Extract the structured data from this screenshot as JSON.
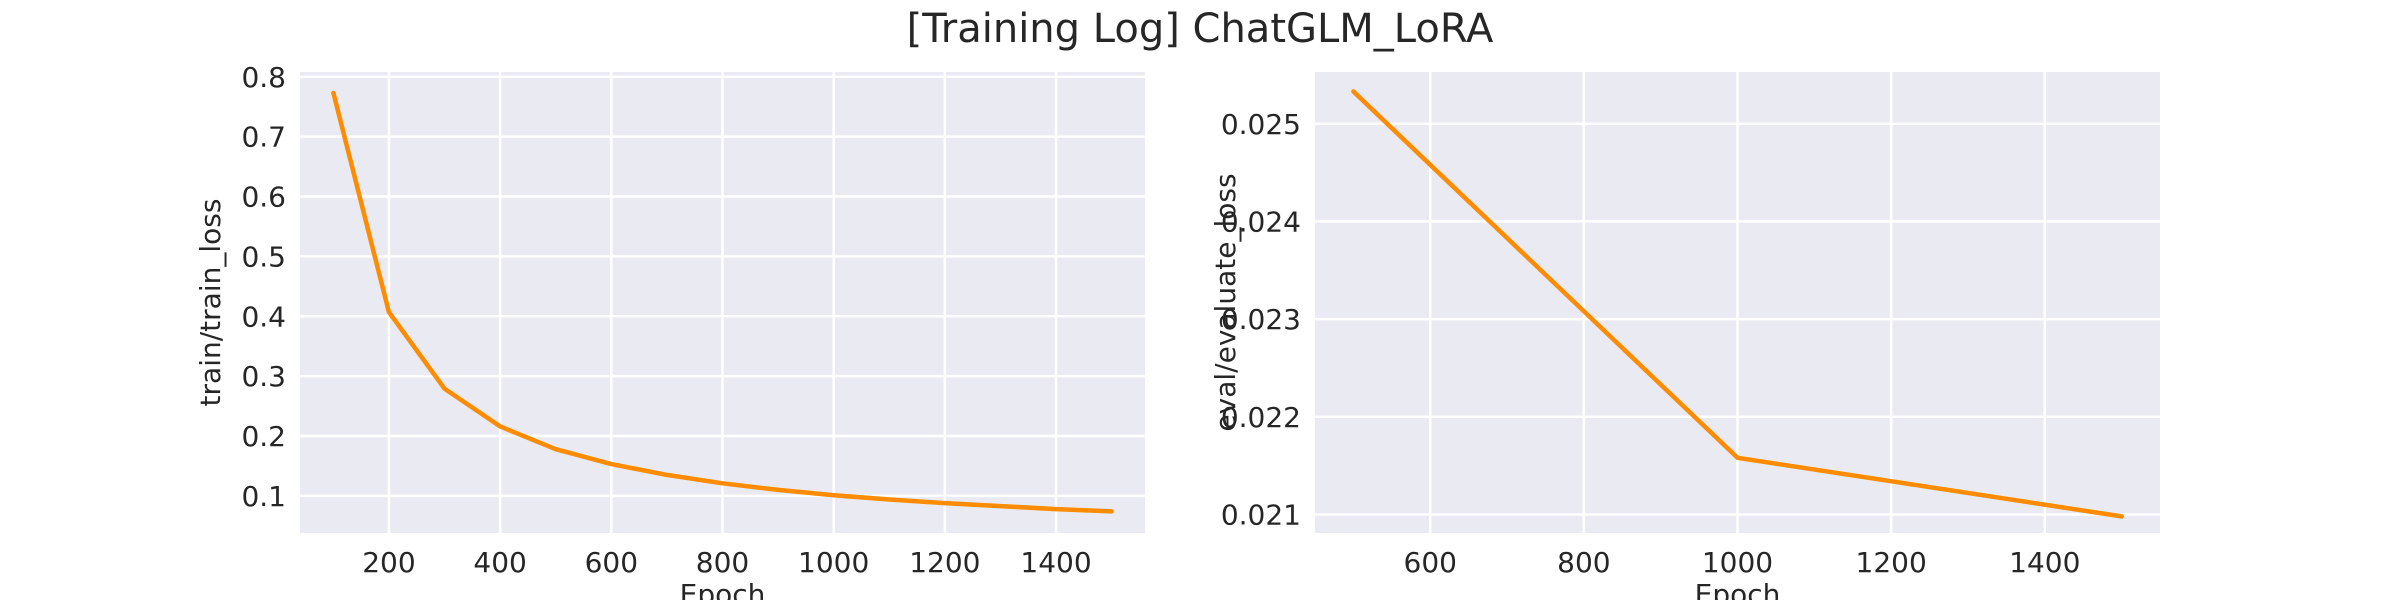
{
  "figure_title": "[Training Log] ChatGLM_LoRA",
  "colors": {
    "line": "#ff8c00",
    "plot_background": "#eaeaf2",
    "grid": "#ffffff",
    "text": "#262626"
  },
  "chart_data": [
    {
      "type": "line",
      "title": "",
      "xlabel": "Epoch",
      "ylabel": "train/train_loss",
      "grid": true,
      "xlim": [
        40,
        1560
      ],
      "ylim": [
        0.038,
        0.808
      ],
      "xticks": [
        200,
        400,
        600,
        800,
        1000,
        1200,
        1400
      ],
      "xtick_labels": [
        "200",
        "400",
        "600",
        "800",
        "1000",
        "1200",
        "1400"
      ],
      "yticks": [
        0.1,
        0.2,
        0.3,
        0.4,
        0.5,
        0.6,
        0.7,
        0.8
      ],
      "ytick_labels": [
        "0.1",
        "0.2",
        "0.3",
        "0.4",
        "0.5",
        "0.6",
        "0.7",
        "0.8"
      ],
      "series": [
        {
          "x": [
            100,
            200,
            300,
            400,
            500,
            600,
            700,
            800,
            900,
            1000,
            1100,
            1200,
            1300,
            1400,
            1500
          ],
          "y": [
            0.773,
            0.407,
            0.279,
            0.216,
            0.178,
            0.153,
            0.135,
            0.121,
            0.11,
            0.101,
            0.094,
            0.088,
            0.083,
            0.078,
            0.074
          ]
        }
      ]
    },
    {
      "type": "line",
      "title": "",
      "xlabel": "Epoch",
      "ylabel": "eval/evaluate_loss",
      "grid": true,
      "xlim": [
        450,
        1550
      ],
      "ylim": [
        0.02081,
        0.02553
      ],
      "xticks": [
        600,
        800,
        1000,
        1200,
        1400
      ],
      "xtick_labels": [
        "600",
        "800",
        "1000",
        "1200",
        "1400"
      ],
      "yticks": [
        0.021,
        0.022,
        0.023,
        0.024,
        0.025
      ],
      "ytick_labels": [
        "0.021",
        "0.022",
        "0.023",
        "0.024",
        "0.025"
      ],
      "series": [
        {
          "x": [
            500,
            1000,
            1500
          ],
          "y": [
            0.02533,
            0.02158,
            0.02098
          ]
        }
      ]
    }
  ]
}
